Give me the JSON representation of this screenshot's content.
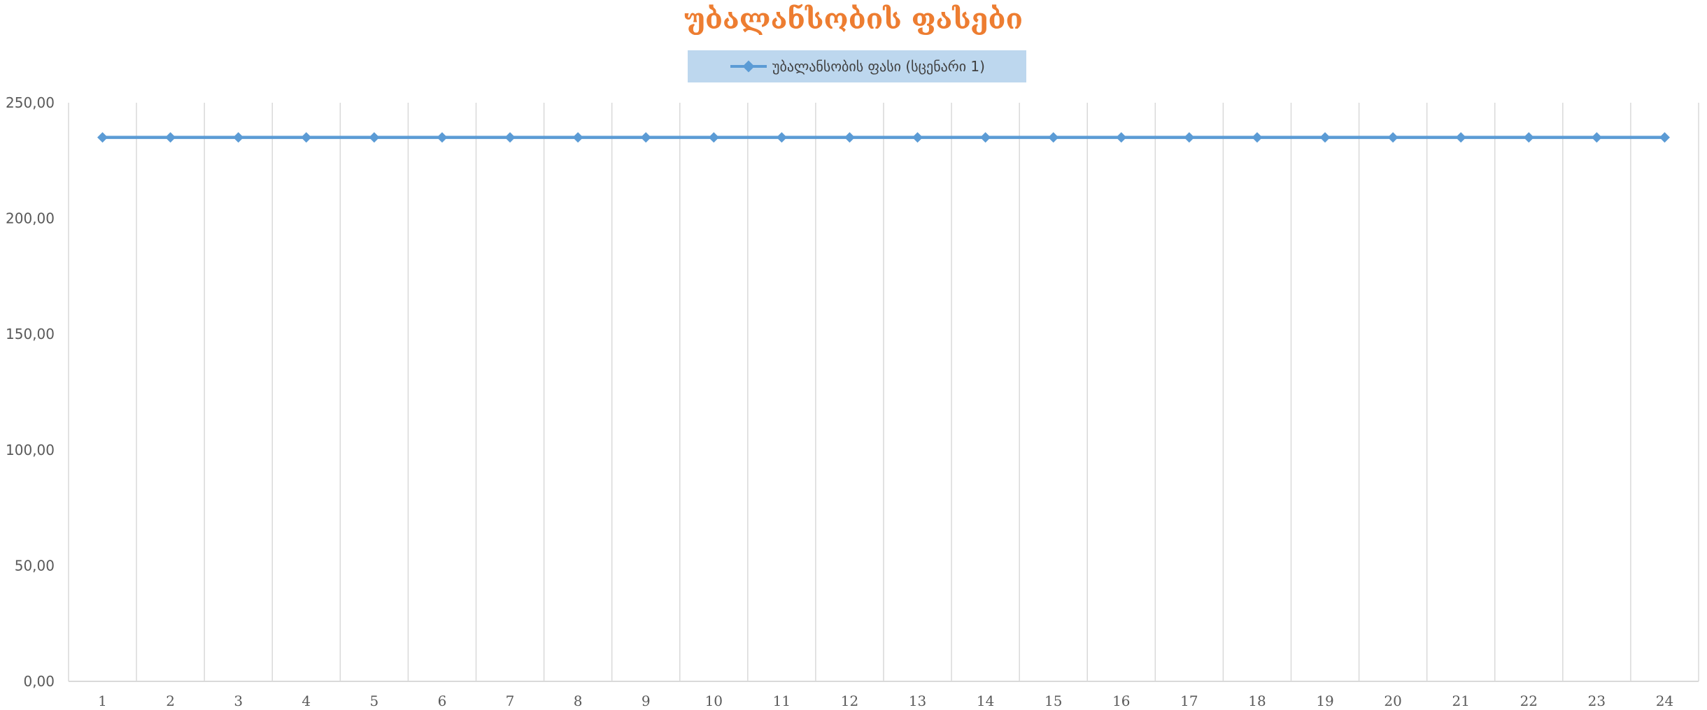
{
  "chart_data": {
    "type": "line",
    "title": "უბალანსობის ფასები",
    "xlabel": "",
    "ylabel": "",
    "categories": [
      "1",
      "2",
      "3",
      "4",
      "5",
      "6",
      "7",
      "8",
      "9",
      "10",
      "11",
      "12",
      "13",
      "14",
      "15",
      "16",
      "17",
      "18",
      "19",
      "20",
      "21",
      "22",
      "23",
      "24"
    ],
    "series": [
      {
        "name": "უბალანსობის ფასი (სცენარი 1)",
        "values": [
          235,
          235,
          235,
          235,
          235,
          235,
          235,
          235,
          235,
          235,
          235,
          235,
          235,
          235,
          235,
          235,
          235,
          235,
          235,
          235,
          235,
          235,
          235,
          235
        ]
      }
    ],
    "ylim": [
      0,
      250
    ],
    "y_ticks": [
      "0,00",
      "50,00",
      "100,00",
      "150,00",
      "200,00",
      "250,00"
    ],
    "grid": "vertical",
    "legend_position": "top",
    "colors": {
      "title": "#ED7D31",
      "series": "#5B9BD5",
      "legend_bg": "#BDD7EE",
      "grid": "#D9D9D9"
    }
  }
}
